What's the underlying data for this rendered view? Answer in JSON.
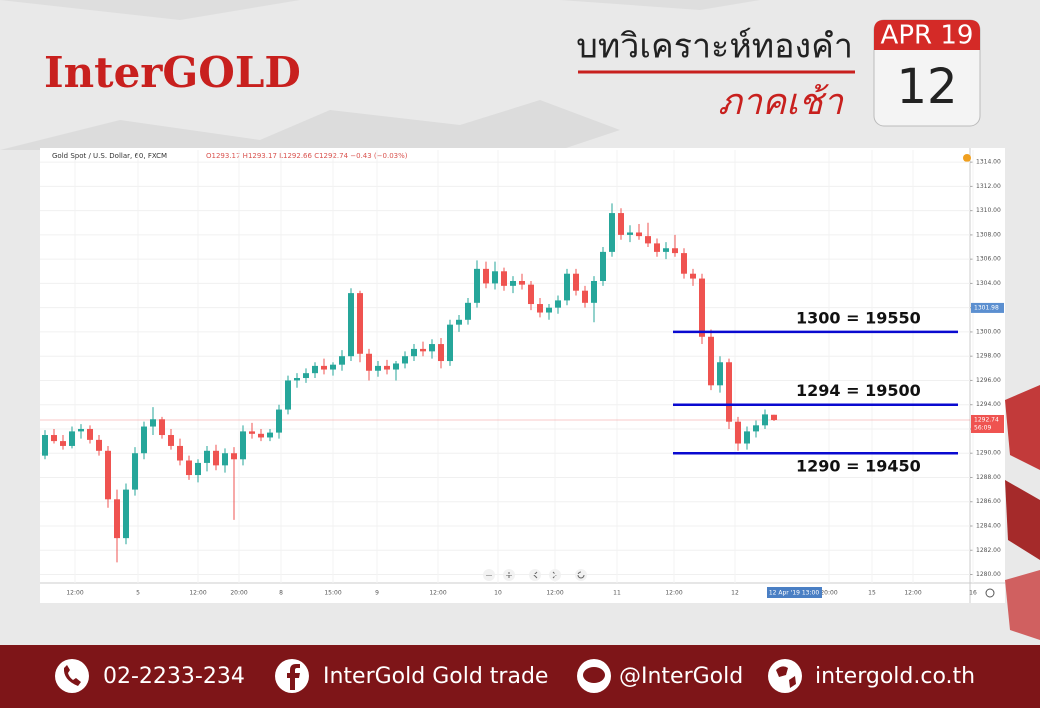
{
  "header": {
    "logo": "InterGOLD",
    "title": "บทวิเคราะห์ทองคำ",
    "subtitle": "ภาคเช้า",
    "date": {
      "month_year": "APR 19",
      "day": "12"
    }
  },
  "chart_data": {
    "type": "candlestick",
    "symbol": "Gold Spot / U.S. Dollar, 60, FXCM",
    "ohlc_text": "O1293.17 H1293.17 L1292.66 C1292.74 −0.43 (−0.03%)",
    "up_color": "#26a69a",
    "down_color": "#ef5350",
    "candles": [
      [
        1289.8,
        1291.9,
        1289.5,
        1291.5
      ],
      [
        1291.5,
        1292.0,
        1290.8,
        1291.0
      ],
      [
        1291.0,
        1291.5,
        1290.3,
        1290.6
      ],
      [
        1290.6,
        1292.2,
        1290.4,
        1291.8
      ],
      [
        1291.8,
        1292.4,
        1291.2,
        1292.0
      ],
      [
        1292.0,
        1292.3,
        1290.8,
        1291.1
      ],
      [
        1291.1,
        1291.5,
        1289.8,
        1290.2
      ],
      [
        1290.2,
        1290.6,
        1285.5,
        1286.2
      ],
      [
        1286.2,
        1287.0,
        1281.0,
        1283.0
      ],
      [
        1283.0,
        1287.5,
        1282.5,
        1287.0
      ],
      [
        1287.0,
        1290.5,
        1286.5,
        1290.0
      ],
      [
        1290.0,
        1292.6,
        1289.5,
        1292.2
      ],
      [
        1292.2,
        1293.8,
        1291.5,
        1292.8
      ],
      [
        1292.8,
        1293.0,
        1291.2,
        1291.5
      ],
      [
        1291.5,
        1292.0,
        1290.3,
        1290.6
      ],
      [
        1290.6,
        1291.2,
        1289.0,
        1289.4
      ],
      [
        1289.4,
        1289.8,
        1287.8,
        1288.2
      ],
      [
        1288.2,
        1289.5,
        1287.6,
        1289.2
      ],
      [
        1289.2,
        1290.6,
        1288.5,
        1290.2
      ],
      [
        1290.2,
        1290.7,
        1288.6,
        1289.0
      ],
      [
        1289.0,
        1290.4,
        1288.4,
        1290.0
      ],
      [
        1290.0,
        1290.5,
        1284.5,
        1289.5
      ],
      [
        1289.5,
        1292.3,
        1289.0,
        1291.8
      ],
      [
        1291.8,
        1292.5,
        1291.2,
        1291.6
      ],
      [
        1291.6,
        1292.0,
        1291.0,
        1291.3
      ],
      [
        1291.3,
        1292.0,
        1291.0,
        1291.7
      ],
      [
        1291.7,
        1294.0,
        1291.2,
        1293.6
      ],
      [
        1293.6,
        1296.4,
        1293.2,
        1296.0
      ],
      [
        1296.0,
        1296.6,
        1295.4,
        1296.2
      ],
      [
        1296.2,
        1297.0,
        1295.8,
        1296.6
      ],
      [
        1296.6,
        1297.5,
        1296.2,
        1297.2
      ],
      [
        1297.2,
        1297.8,
        1296.5,
        1296.9
      ],
      [
        1296.9,
        1297.5,
        1296.4,
        1297.3
      ],
      [
        1297.3,
        1298.5,
        1296.8,
        1298.0
      ],
      [
        1298.0,
        1303.6,
        1297.6,
        1303.2
      ],
      [
        1303.2,
        1303.4,
        1297.5,
        1298.2
      ],
      [
        1298.2,
        1298.6,
        1296.0,
        1296.8
      ],
      [
        1296.8,
        1297.6,
        1296.3,
        1297.2
      ],
      [
        1297.2,
        1297.7,
        1296.5,
        1296.9
      ],
      [
        1296.9,
        1297.6,
        1296.0,
        1297.4
      ],
      [
        1297.4,
        1298.4,
        1297.0,
        1298.0
      ],
      [
        1298.0,
        1299.0,
        1297.6,
        1298.6
      ],
      [
        1298.6,
        1299.2,
        1298.0,
        1298.4
      ],
      [
        1298.4,
        1299.4,
        1297.8,
        1299.0
      ],
      [
        1299.0,
        1299.5,
        1297.0,
        1297.6
      ],
      [
        1297.6,
        1301.0,
        1297.2,
        1300.6
      ],
      [
        1300.6,
        1301.4,
        1300.0,
        1301.0
      ],
      [
        1301.0,
        1302.8,
        1300.6,
        1302.4
      ],
      [
        1302.4,
        1305.9,
        1302.0,
        1305.2
      ],
      [
        1305.2,
        1305.8,
        1303.6,
        1304.0
      ],
      [
        1304.0,
        1305.8,
        1303.5,
        1305.0
      ],
      [
        1305.0,
        1305.3,
        1303.4,
        1303.8
      ],
      [
        1303.8,
        1304.6,
        1303.2,
        1304.2
      ],
      [
        1304.2,
        1304.8,
        1303.5,
        1303.9
      ],
      [
        1303.9,
        1304.2,
        1301.8,
        1302.3
      ],
      [
        1302.3,
        1302.8,
        1301.2,
        1301.6
      ],
      [
        1301.6,
        1302.3,
        1301.0,
        1302.0
      ],
      [
        1302.0,
        1303.0,
        1301.5,
        1302.6
      ],
      [
        1302.6,
        1305.2,
        1302.2,
        1304.8
      ],
      [
        1304.8,
        1305.2,
        1303.0,
        1303.4
      ],
      [
        1303.4,
        1303.8,
        1302.0,
        1302.4
      ],
      [
        1302.4,
        1304.6,
        1300.8,
        1304.2
      ],
      [
        1304.2,
        1307.0,
        1303.8,
        1306.6
      ],
      [
        1306.6,
        1310.6,
        1306.2,
        1309.8
      ],
      [
        1309.8,
        1310.2,
        1307.6,
        1308.0
      ],
      [
        1308.0,
        1308.8,
        1307.4,
        1308.2
      ],
      [
        1308.2,
        1308.9,
        1307.6,
        1307.9
      ],
      [
        1307.9,
        1309.0,
        1307.0,
        1307.3
      ],
      [
        1307.3,
        1307.7,
        1306.2,
        1306.6
      ],
      [
        1306.6,
        1307.4,
        1306.0,
        1306.9
      ],
      [
        1306.9,
        1308.0,
        1306.2,
        1306.5
      ],
      [
        1306.5,
        1306.9,
        1304.4,
        1304.8
      ],
      [
        1304.8,
        1305.2,
        1303.8,
        1304.4
      ],
      [
        1304.4,
        1304.8,
        1299.0,
        1299.6
      ],
      [
        1299.6,
        1300.2,
        1295.2,
        1295.6
      ],
      [
        1295.6,
        1298.0,
        1295.0,
        1297.5
      ],
      [
        1297.5,
        1297.8,
        1292.0,
        1292.6
      ],
      [
        1292.6,
        1293.0,
        1290.2,
        1290.8
      ],
      [
        1290.8,
        1292.2,
        1290.3,
        1291.8
      ],
      [
        1291.8,
        1292.7,
        1291.3,
        1292.3
      ],
      [
        1292.3,
        1293.6,
        1292.0,
        1293.2
      ],
      [
        1293.17,
        1293.17,
        1292.66,
        1292.74
      ]
    ],
    "ylim": [
      1279.3,
      1315
    ],
    "yticks": [
      {
        "value": 1280,
        "label": "1280.00"
      },
      {
        "value": 1282,
        "label": "1282.00"
      },
      {
        "value": 1284,
        "label": "1284.00"
      },
      {
        "value": 1286,
        "label": "1286.00"
      },
      {
        "value": 1288,
        "label": "1288.00"
      },
      {
        "value": 1290,
        "label": "1290.00"
      },
      {
        "value": 1292,
        "label": "1292.00"
      },
      {
        "value": 1294,
        "label": "1294.00"
      },
      {
        "value": 1296,
        "label": "1296.00"
      },
      {
        "value": 1298,
        "label": "1298.00"
      },
      {
        "value": 1300,
        "label": "1300.00"
      },
      {
        "value": 1302,
        "label": "1302.00"
      },
      {
        "value": 1304,
        "label": "1304.00"
      },
      {
        "value": 1306,
        "label": "1306.00"
      },
      {
        "value": 1308,
        "label": "1308.00"
      },
      {
        "value": 1310,
        "label": "1310.00"
      },
      {
        "value": 1312,
        "label": "1312.00"
      },
      {
        "value": 1314,
        "label": "1314.00"
      }
    ],
    "x_labels": [
      "12:00",
      "5",
      "12:00",
      "20:00",
      "8",
      "15:00",
      "9",
      "12:00",
      "10",
      "12:00",
      "11",
      "12:00",
      "12",
      "20:00",
      "15",
      "12:00",
      "16"
    ],
    "x_marker": "12 Apr '19   13:00",
    "levels": [
      {
        "value": 1300,
        "label": "1300 = 19550"
      },
      {
        "value": 1294,
        "label": "1294 = 19500"
      },
      {
        "value": 1290,
        "label": "1290 = 19450"
      }
    ],
    "level_color": "#0a0ad0",
    "price_markers": [
      {
        "value": 1301.98,
        "label": "1301.98",
        "color": "#5b8fd0"
      },
      {
        "value": 1292.74,
        "label": "1292.74",
        "color": "#ef5350"
      }
    ],
    "countdown": "56:09"
  },
  "footer": {
    "phone": "02-2233-234",
    "facebook": "InterGold Gold trade",
    "line": "@InterGold",
    "website": "intergold.co.th"
  }
}
